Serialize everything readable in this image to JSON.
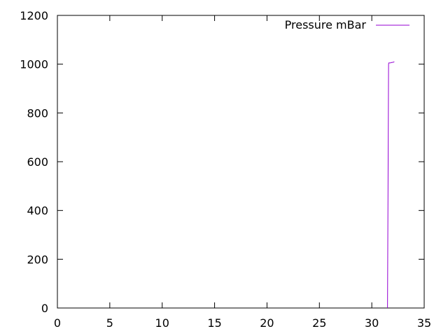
{
  "chart_data": {
    "type": "line",
    "title": "",
    "xlabel": "",
    "ylabel": "",
    "xlim": [
      0,
      35
    ],
    "ylim": [
      0,
      1200
    ],
    "x_ticks": [
      0,
      5,
      10,
      15,
      20,
      25,
      30,
      35
    ],
    "y_ticks": [
      0,
      200,
      400,
      600,
      800,
      1000,
      1200
    ],
    "x_tick_labels": [
      "0",
      "5",
      "10",
      "15",
      "20",
      "25",
      "30",
      "35"
    ],
    "y_tick_labels": [
      "0",
      "200",
      "400",
      "600",
      "800",
      "1000",
      "1200"
    ],
    "grid": false,
    "legend_position": "top-right",
    "series": [
      {
        "name": "Pressure mBar",
        "color": "#9400d3",
        "x": [
          31.5,
          31.55,
          31.55,
          31.6,
          31.62,
          31.65,
          31.75,
          31.9,
          32.05,
          32.15
        ],
        "y": [
          0,
          500,
          500,
          1000,
          1005,
          1005,
          1005,
          1007,
          1008,
          1010
        ]
      }
    ]
  }
}
